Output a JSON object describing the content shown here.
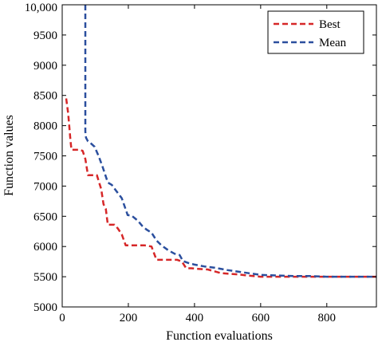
{
  "chart_data": {
    "type": "line",
    "xlabel": "Function evaluations",
    "ylabel": "Function values",
    "xlim": [
      0,
      950
    ],
    "ylim": [
      5000,
      10000
    ],
    "x_ticks": [
      0,
      200,
      400,
      600,
      800
    ],
    "x_tick_labels": [
      "0",
      "200",
      "400",
      "600",
      "800"
    ],
    "y_ticks": [
      5000,
      5500,
      6000,
      6500,
      7000,
      7500,
      8000,
      8500,
      9000,
      9500,
      10000
    ],
    "y_tick_labels": [
      "5000",
      "5500",
      "6000",
      "6500",
      "7000",
      "7500",
      "8000",
      "8500",
      "9000",
      "9500",
      "10,000"
    ],
    "grid": false,
    "legend_position": "top-right",
    "series": [
      {
        "name": "Best",
        "color": "#d62728",
        "dash": "dashed",
        "x": [
          12,
          18,
          25,
          28,
          48,
          55,
          62,
          70,
          78,
          90,
          105,
          118,
          125,
          132,
          138,
          148,
          158,
          168,
          180,
          192,
          210,
          225,
          248,
          270,
          285,
          300,
          320,
          348,
          362,
          375,
          390,
          410,
          440,
          460,
          480,
          500,
          530,
          560,
          600,
          650,
          700,
          750,
          800,
          850,
          950
        ],
        "y": [
          8450,
          8200,
          7750,
          7600,
          7600,
          7600,
          7580,
          7450,
          7180,
          7180,
          7180,
          6950,
          6700,
          6620,
          6360,
          6360,
          6360,
          6300,
          6200,
          6020,
          6020,
          6020,
          6020,
          6000,
          5780,
          5780,
          5780,
          5780,
          5750,
          5640,
          5640,
          5630,
          5620,
          5590,
          5560,
          5550,
          5540,
          5520,
          5500,
          5500,
          5500,
          5500,
          5500,
          5500,
          5500
        ]
      },
      {
        "name": "Mean",
        "color": "#2b4f9e",
        "dash": "dashed",
        "x": [
          70,
          70,
          72,
          78,
          88,
          98,
          110,
          122,
          138,
          150,
          162,
          180,
          198,
          210,
          228,
          242,
          255,
          270,
          285,
          300,
          320,
          340,
          355,
          365,
          380,
          400,
          430,
          460,
          500,
          550,
          600,
          650,
          700,
          750,
          800,
          850,
          950
        ],
        "y": [
          10000,
          7900,
          7800,
          7740,
          7700,
          7650,
          7500,
          7320,
          7060,
          7020,
          6930,
          6800,
          6520,
          6510,
          6430,
          6340,
          6280,
          6230,
          6100,
          6020,
          5940,
          5880,
          5860,
          5760,
          5730,
          5700,
          5670,
          5650,
          5610,
          5570,
          5530,
          5520,
          5510,
          5510,
          5500,
          5500,
          5500
        ]
      }
    ]
  }
}
